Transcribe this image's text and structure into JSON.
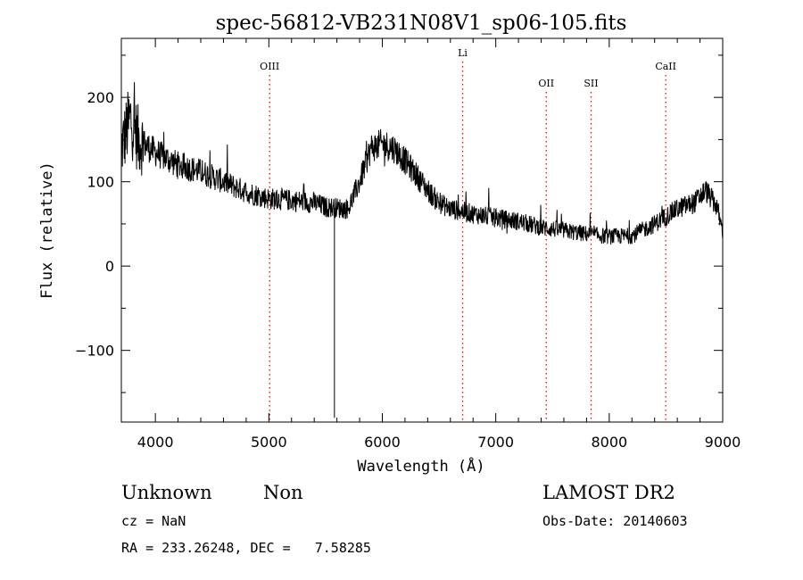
{
  "chart_data": {
    "type": "line",
    "title": "spec-56812-VB231N08V1_sp06-105.fits",
    "xlabel": "Wavelength (Å)",
    "ylabel": "Flux (relative)",
    "xlim": [
      3700,
      9000
    ],
    "ylim": [
      -185,
      270
    ],
    "x_ticks": [
      4000,
      5000,
      6000,
      7000,
      8000,
      9000
    ],
    "y_ticks": [
      -100,
      0,
      100,
      200
    ],
    "grid": false,
    "line_color": "#000000",
    "marker_color": "#ff0000",
    "lines": [
      {
        "label": "OIII",
        "x": 5007
      },
      {
        "label": "Li",
        "x": 6708
      },
      {
        "label": "OII",
        "x": 7445
      },
      {
        "label": "SII",
        "x": 7840
      },
      {
        "label": "CaII",
        "x": 8498
      }
    ],
    "continuum": {
      "x": [
        3700,
        3780,
        3850,
        4000,
        4200,
        4400,
        4600,
        4800,
        5000,
        5200,
        5400,
        5500,
        5700,
        5800,
        5900,
        6000,
        6100,
        6200,
        6300,
        6400,
        6500,
        6600,
        6800,
        7000,
        7200,
        7400,
        7600,
        7800,
        8000,
        8200,
        8400,
        8600,
        8750,
        8850,
        8950,
        9000
      ],
      "y": [
        140,
        175,
        150,
        135,
        120,
        112,
        100,
        88,
        80,
        78,
        75,
        70,
        68,
        100,
        140,
        145,
        140,
        125,
        108,
        90,
        75,
        68,
        62,
        57,
        53,
        46,
        42,
        38,
        35,
        36,
        50,
        68,
        75,
        90,
        70,
        40
      ]
    },
    "absorption": [
      {
        "x": 5578,
        "y": -180
      }
    ]
  },
  "footer": {
    "object_class": "Unknown",
    "subclass": "Non",
    "survey": "LAMOST DR2",
    "redshift": "cz = NaN",
    "obs_date": "Obs-Date: 20140603",
    "coords": "RA = 233.26248, DEC =   7.58285"
  }
}
